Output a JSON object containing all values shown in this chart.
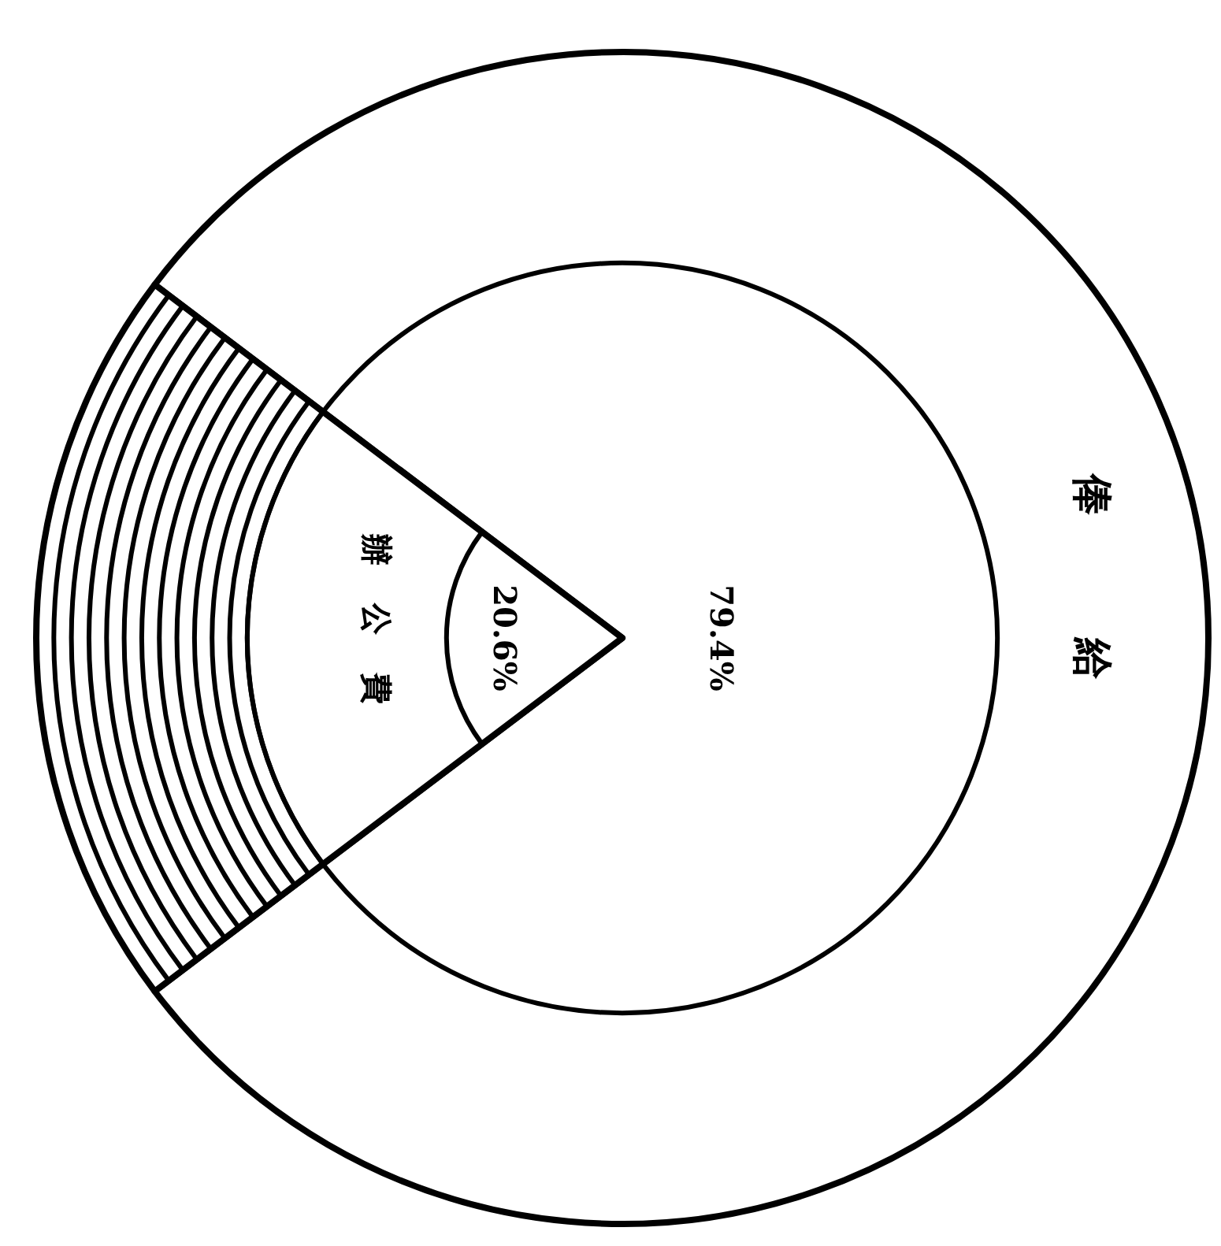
{
  "chart_data": {
    "type": "pie",
    "categories": [
      "俸給",
      "辦公費"
    ],
    "values": [
      79.4,
      20.6
    ],
    "colors": [
      "#ffffff",
      "#ffffff"
    ],
    "value_labels": [
      "79.4%",
      "20.6%"
    ]
  }
}
